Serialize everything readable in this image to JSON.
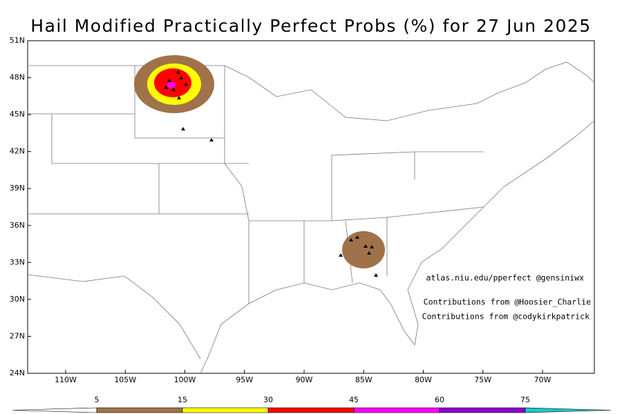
{
  "title": "Hail Modified Practically Perfect Probs (%) for 27 Jun 2025",
  "lat_ticks": [
    "51N",
    "48N",
    "45N",
    "42N",
    "39N",
    "36N",
    "33N",
    "30N",
    "27N",
    "24N"
  ],
  "lon_ticks": [
    "110W",
    "105W",
    "100W",
    "95W",
    "90W",
    "85W",
    "80W",
    "75W",
    "70W"
  ],
  "credits": [
    "atlas.niu.edu/pperfect @gensiniwx",
    "Contributions from @Hoosier_Charlie",
    "Contributions from @codykirkpatrick"
  ],
  "colorbar": {
    "labels": [
      "5",
      "15",
      "30",
      "45",
      "60",
      "75"
    ],
    "colors": [
      "#ffffff",
      "#a0724a",
      "#ffff00",
      "#ff0000",
      "#ff00ff",
      "#8a00d4",
      "#1ec8c8"
    ]
  }
}
